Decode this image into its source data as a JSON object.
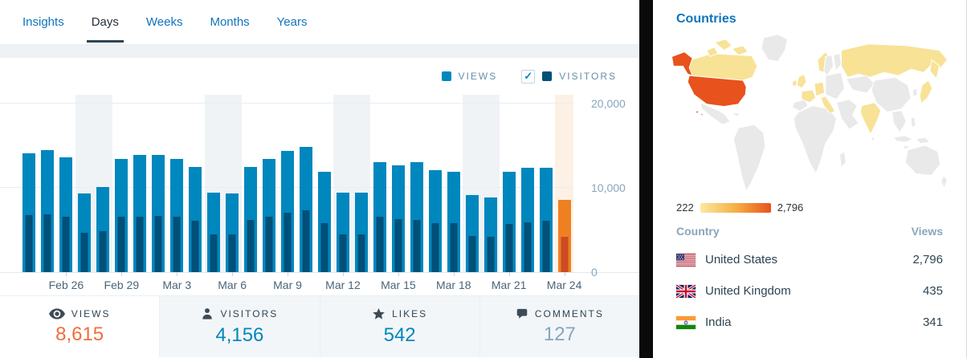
{
  "tabs": [
    {
      "label": "Insights",
      "active": false
    },
    {
      "label": "Days",
      "active": true
    },
    {
      "label": "Weeks",
      "active": false
    },
    {
      "label": "Months",
      "active": false
    },
    {
      "label": "Years",
      "active": false
    }
  ],
  "legend": {
    "views_label": "VIEWS",
    "visitors_label": "VISITORS",
    "views_color": "#0087be",
    "visitors_color": "#005078",
    "visitors_checkbox_checked": true,
    "check_glyph": "✓"
  },
  "chart_data": {
    "type": "bar",
    "title": "Views and visitors per day",
    "categories": [
      "Feb 24",
      "Feb 25",
      "Feb 26",
      "Feb 27",
      "Feb 28",
      "Feb 29",
      "Mar 1",
      "Mar 2",
      "Mar 3",
      "Mar 4",
      "Mar 5",
      "Mar 6",
      "Mar 7",
      "Mar 8",
      "Mar 9",
      "Mar 10",
      "Mar 11",
      "Mar 12",
      "Mar 13",
      "Mar 14",
      "Mar 15",
      "Mar 16",
      "Mar 17",
      "Mar 18",
      "Mar 19",
      "Mar 20",
      "Mar 21",
      "Mar 22",
      "Mar 23",
      "Mar 24"
    ],
    "series": [
      {
        "name": "Views",
        "values": [
          14100,
          14500,
          13600,
          9300,
          10100,
          13400,
          13900,
          13900,
          13400,
          12500,
          9450,
          9340,
          12500,
          13400,
          14400,
          14900,
          11900,
          9400,
          9400,
          13000,
          12700,
          13000,
          12100,
          11900,
          9100,
          8850,
          11900,
          12400,
          12400,
          8615
        ]
      },
      {
        "name": "Visitors",
        "values": [
          6800,
          6850,
          6600,
          4700,
          4850,
          6580,
          6610,
          6630,
          6580,
          6130,
          4460,
          4460,
          6180,
          6580,
          7000,
          7340,
          5820,
          4490,
          4510,
          6610,
          6300,
          6180,
          5820,
          5820,
          4310,
          4180,
          5760,
          5900,
          6060,
          4156
        ]
      }
    ],
    "ylim": [
      0,
      21000
    ],
    "yticks": [
      0,
      10000,
      20000
    ],
    "ytick_labels": [
      "0",
      "10,000",
      "20,000"
    ],
    "tick_indices": [
      2,
      5,
      8,
      11,
      14,
      17,
      20,
      23,
      26,
      29
    ],
    "weekend_indices": [
      3,
      4,
      10,
      11,
      17,
      18,
      24,
      25
    ],
    "selected_index": 29,
    "grid": true,
    "legend_position": "top-right",
    "colors": {
      "views": "#0087be",
      "visitors": "#005078",
      "selected_views": "#ee8022",
      "selected_visitors": "#cc4b24",
      "selected_bg": "#fcf1e4",
      "weekend_bg": "#eff3f6"
    }
  },
  "summary": [
    {
      "label": "VIEWS",
      "value": "8,615",
      "icon": "eye-icon",
      "value_color": "#f06e3d",
      "selected": true
    },
    {
      "label": "VISITORS",
      "value": "4,156",
      "icon": "person-icon",
      "value_color": "#0087be",
      "selected": false
    },
    {
      "label": "LIKES",
      "value": "542",
      "icon": "star-icon",
      "value_color": "#0087be",
      "selected": false
    },
    {
      "label": "COMMENTS",
      "value": "127",
      "icon": "comment-icon",
      "value_color": "#87a6bc",
      "selected": false
    }
  ],
  "countries_panel": {
    "title": "Countries",
    "scale": {
      "min": "222",
      "max": "2,796",
      "gradient": [
        "#fce8a0",
        "#f5b044",
        "#e8521d"
      ]
    },
    "map_colors": {
      "land": "#e9e9e9",
      "low": "#f8e296",
      "high": "#e8521d"
    },
    "table": {
      "country_header": "Country",
      "views_header": "Views",
      "rows": [
        {
          "country": "United States",
          "views": "2,796",
          "flag": "us"
        },
        {
          "country": "United Kingdom",
          "views": "435",
          "flag": "gb"
        },
        {
          "country": "India",
          "views": "341",
          "flag": "in"
        }
      ]
    }
  }
}
